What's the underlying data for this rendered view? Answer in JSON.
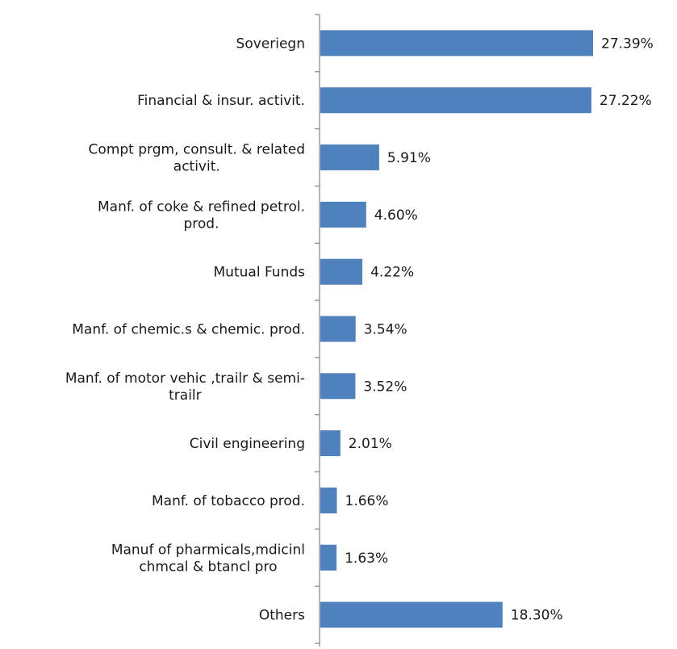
{
  "chart_data": {
    "type": "bar",
    "orientation": "horizontal",
    "categories": [
      [
        "Soveriegn"
      ],
      [
        "Financial & insur. activit."
      ],
      [
        "Compt prgm, consult. & related",
        "activit."
      ],
      [
        "Manf. of coke & refined petrol.",
        "prod."
      ],
      [
        "Mutual Funds"
      ],
      [
        "Manf. of chemic.s & chemic. prod."
      ],
      [
        "Manf. of motor vehic ,trailr & semi-",
        "trailr"
      ],
      [
        "Civil engineering"
      ],
      [
        "Manf. of tobacco prod."
      ],
      [
        "Manuf of pharmicals,mdicinl",
        "chmcal & btancl pro"
      ],
      [
        "Others"
      ]
    ],
    "values": [
      27.39,
      27.22,
      5.91,
      4.6,
      4.22,
      3.54,
      3.52,
      2.01,
      1.66,
      1.63,
      18.3
    ],
    "value_labels": [
      "27.39%",
      "27.22%",
      "5.91%",
      "4.60%",
      "4.22%",
      "3.54%",
      "3.52%",
      "2.01%",
      "1.66%",
      "1.63%",
      "18.30%"
    ],
    "title": "",
    "xlabel": "",
    "ylabel": "",
    "xlim": [
      0,
      30
    ],
    "grid": false,
    "legend": "none",
    "colors": {
      "bar": "#4F81BD",
      "axis": "#8c8c8c",
      "text": "#1a1a1a"
    }
  }
}
